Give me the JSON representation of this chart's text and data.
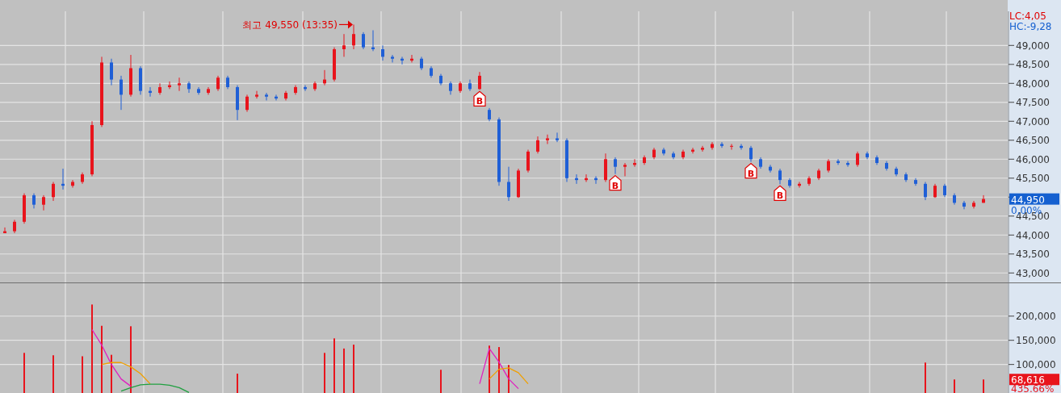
{
  "chart_data": [
    {
      "type": "candlestick",
      "categories": [
        null,
        null,
        null,
        null,
        null,
        null,
        null,
        null,
        null,
        null,
        null,
        null,
        null,
        null,
        null,
        null,
        null,
        null,
        null,
        null,
        null,
        null,
        null,
        null,
        null,
        null,
        null,
        null,
        null,
        null,
        null,
        null,
        null,
        null,
        null,
        null,
        null,
        null,
        null,
        null,
        null,
        null,
        null,
        null,
        null,
        null,
        null,
        null,
        null,
        null,
        null,
        null,
        null,
        null,
        null,
        null,
        null,
        null,
        null,
        null,
        null,
        null,
        null,
        null,
        null,
        null,
        null,
        null,
        null,
        null,
        null,
        null,
        null,
        null,
        null,
        null,
        null,
        null,
        null,
        null,
        null,
        null,
        null,
        null,
        null,
        null,
        null,
        null,
        null,
        null,
        null,
        null,
        null,
        null,
        null,
        null,
        null,
        null,
        null,
        null,
        null,
        null
      ],
      "ohlc": [
        [
          44050,
          44200,
          44050,
          44100
        ],
        [
          44100,
          44400,
          44050,
          44350
        ],
        [
          44350,
          45100,
          44300,
          45050
        ],
        [
          45050,
          45100,
          44700,
          44800
        ],
        [
          44800,
          45050,
          44650,
          45000
        ],
        [
          45000,
          45400,
          44900,
          45350
        ],
        [
          45350,
          45750,
          45200,
          45300
        ],
        [
          45300,
          45450,
          45250,
          45400
        ],
        [
          45400,
          45650,
          45350,
          45600
        ],
        [
          45600,
          47000,
          45550,
          46900
        ],
        [
          46900,
          48700,
          46850,
          48550
        ],
        [
          48550,
          48650,
          47950,
          48100
        ],
        [
          48100,
          48200,
          47300,
          47700
        ],
        [
          47700,
          48750,
          47650,
          48400
        ],
        [
          48400,
          48450,
          47700,
          47800
        ],
        [
          47800,
          47900,
          47650,
          47750
        ],
        [
          47750,
          48000,
          47700,
          47900
        ],
        [
          47900,
          48050,
          47850,
          47950
        ],
        [
          47950,
          48150,
          47800,
          48000
        ],
        [
          48000,
          48050,
          47750,
          47850
        ],
        [
          47850,
          47900,
          47700,
          47750
        ],
        [
          47750,
          47900,
          47700,
          47850
        ],
        [
          47850,
          48200,
          47800,
          48150
        ],
        [
          48150,
          48200,
          47850,
          47900
        ],
        [
          47900,
          47950,
          47030,
          47300
        ],
        [
          47300,
          47700,
          47250,
          47650
        ],
        [
          47650,
          47800,
          47600,
          47700
        ],
        [
          47700,
          47750,
          47550,
          47650
        ],
        [
          47650,
          47700,
          47550,
          47600
        ],
        [
          47600,
          47800,
          47550,
          47750
        ],
        [
          47750,
          47950,
          47700,
          47900
        ],
        [
          47900,
          47950,
          47800,
          47850
        ],
        [
          47850,
          48050,
          47800,
          48000
        ],
        [
          48000,
          48350,
          47950,
          48100
        ],
        [
          48100,
          48950,
          48050,
          48900
        ],
        [
          48900,
          49300,
          48700,
          49000
        ],
        [
          49000,
          49550,
          48900,
          49300
        ],
        [
          49300,
          49350,
          48900,
          48950
        ],
        [
          48950,
          49400,
          48850,
          48900
        ],
        [
          48900,
          49000,
          48600,
          48700
        ],
        [
          48700,
          48750,
          48550,
          48650
        ],
        [
          48650,
          48700,
          48500,
          48600
        ],
        [
          48600,
          48750,
          48550,
          48650
        ],
        [
          48650,
          48700,
          48350,
          48400
        ],
        [
          48400,
          48450,
          48150,
          48200
        ],
        [
          48200,
          48250,
          47950,
          48000
        ],
        [
          48000,
          48050,
          47700,
          47800
        ],
        [
          47800,
          48050,
          47750,
          48000
        ],
        [
          48000,
          48100,
          47800,
          47850
        ],
        [
          47850,
          48300,
          47830,
          48200
        ],
        [
          47300,
          47350,
          47000,
          47050
        ],
        [
          47050,
          47100,
          45300,
          45400
        ],
        [
          45400,
          45800,
          44900,
          45000
        ],
        [
          45000,
          45750,
          44980,
          45700
        ],
        [
          45700,
          46250,
          45650,
          46200
        ],
        [
          46200,
          46600,
          46150,
          46500
        ],
        [
          46500,
          46650,
          46400,
          46550
        ],
        [
          46550,
          46700,
          46450,
          46500
        ],
        [
          46500,
          46550,
          45400,
          45500
        ],
        [
          45500,
          45600,
          45350,
          45450
        ],
        [
          45450,
          45600,
          45400,
          45500
        ],
        [
          45500,
          45550,
          45350,
          45450
        ],
        [
          45450,
          46150,
          45400,
          46000
        ],
        [
          46000,
          46050,
          45610,
          45800
        ],
        [
          45800,
          45900,
          45550,
          45850
        ],
        [
          45850,
          46000,
          45800,
          45900
        ],
        [
          45900,
          46100,
          45850,
          46050
        ],
        [
          46050,
          46300,
          46000,
          46250
        ],
        [
          46250,
          46300,
          46100,
          46150
        ],
        [
          46150,
          46200,
          46000,
          46050
        ],
        [
          46050,
          46250,
          46000,
          46200
        ],
        [
          46200,
          46300,
          46150,
          46250
        ],
        [
          46250,
          46350,
          46200,
          46300
        ],
        [
          46300,
          46450,
          46250,
          46400
        ],
        [
          46400,
          46450,
          46300,
          46350
        ],
        [
          46350,
          46400,
          46250,
          46350
        ],
        [
          46350,
          46400,
          46250,
          46300
        ],
        [
          46300,
          46350,
          45930,
          46000
        ],
        [
          46000,
          46050,
          45750,
          45800
        ],
        [
          45800,
          45850,
          45650,
          45700
        ],
        [
          45700,
          45750,
          45340,
          45450
        ],
        [
          45450,
          45500,
          45250,
          45300
        ],
        [
          45300,
          45400,
          45250,
          45350
        ],
        [
          45350,
          45550,
          45300,
          45500
        ],
        [
          45500,
          45750,
          45450,
          45700
        ],
        [
          45700,
          46000,
          45650,
          45950
        ],
        [
          45950,
          46000,
          45850,
          45900
        ],
        [
          45900,
          45950,
          45800,
          45850
        ],
        [
          45850,
          46200,
          45800,
          46150
        ],
        [
          46150,
          46200,
          46000,
          46050
        ],
        [
          46050,
          46100,
          45850,
          45900
        ],
        [
          45900,
          45950,
          45700,
          45750
        ],
        [
          45750,
          45800,
          45550,
          45600
        ],
        [
          45600,
          45650,
          45400,
          45450
        ],
        [
          45450,
          45500,
          45300,
          45350
        ],
        [
          45350,
          45400,
          44920,
          45000
        ],
        [
          45000,
          45350,
          44980,
          45300
        ],
        [
          45300,
          45350,
          45000,
          45050
        ],
        [
          45050,
          45100,
          44800,
          44850
        ],
        [
          44850,
          44900,
          44680,
          44750
        ],
        [
          44750,
          44900,
          44700,
          44850
        ],
        [
          44850,
          45050,
          44850,
          44950
        ]
      ],
      "ylim": [
        42750,
        49900
      ],
      "yticks": [
        {
          "value": 43000,
          "label": "43,000"
        },
        {
          "value": 43500,
          "label": "43,500"
        },
        {
          "value": 44000,
          "label": "44,000"
        },
        {
          "value": 44500,
          "label": "44,500"
        },
        {
          "value": 45000,
          "label": null
        },
        {
          "value": 45500,
          "label": "45,500"
        },
        {
          "value": 46000,
          "label": "46,000"
        },
        {
          "value": 46500,
          "label": "46,500"
        },
        {
          "value": 47000,
          "label": "47,000"
        },
        {
          "value": 47500,
          "label": "47,500"
        },
        {
          "value": 48000,
          "label": "48,000"
        },
        {
          "value": 48500,
          "label": "48,500"
        },
        {
          "value": 49000,
          "label": "49,000"
        }
      ],
      "grid": true,
      "tick_labels": "y",
      "annotations": [
        "최고 49,550 (13:35)",
        {
          "text": "B",
          "y": 47830
        },
        {
          "text": "B",
          "y": 45610
        },
        {
          "text": "B",
          "y": 45930
        },
        {
          "text": "B",
          "y": 45340
        },
        "LC:4,05",
        "HC:-9,28",
        "44,950",
        "0,00%"
      ]
    },
    {
      "type": "bar",
      "categories": [
        null,
        null,
        null,
        null,
        null,
        null,
        null,
        null,
        null,
        null,
        null,
        null,
        null,
        null,
        null,
        null,
        null,
        null,
        null,
        null,
        null,
        null,
        null,
        null,
        null,
        null,
        null,
        null,
        null,
        null,
        null,
        null,
        null,
        null,
        null,
        null,
        null,
        null,
        null,
        null,
        null,
        null,
        null,
        null,
        null,
        null,
        null,
        null,
        null,
        null,
        null,
        null,
        null,
        null,
        null,
        null,
        null,
        null,
        null,
        null,
        null,
        null,
        null,
        null,
        null,
        null,
        null,
        null,
        null,
        null,
        null,
        null,
        null,
        null,
        null,
        null,
        null,
        null,
        null,
        null,
        null,
        null,
        null,
        null,
        null,
        null,
        null,
        null,
        null,
        null,
        null,
        null,
        null,
        null,
        null,
        null,
        null,
        null,
        null,
        null,
        null,
        null
      ],
      "series": [
        {
          "color": "#e8141c",
          "values": [
            null,
            null,
            124000,
            null,
            null,
            119000,
            null,
            null,
            117000,
            224000,
            180000,
            120000,
            null,
            179000,
            null,
            null,
            null,
            null,
            null,
            null,
            null,
            null,
            null,
            null,
            81000,
            null,
            null,
            null,
            null,
            null,
            null,
            null,
            null,
            124000,
            154000,
            133000,
            141000,
            null,
            null,
            null,
            null,
            null,
            null,
            null,
            null,
            89000,
            null,
            null,
            null,
            null,
            139000,
            136000,
            99000,
            null,
            null,
            null,
            null,
            null,
            null,
            null,
            null,
            null,
            null,
            null,
            null,
            null,
            null,
            null,
            null,
            null,
            null,
            null,
            null,
            null,
            null,
            null,
            null,
            null,
            null,
            null,
            null,
            null,
            null,
            null,
            null,
            null,
            null,
            null,
            null,
            null,
            null,
            null,
            null,
            null,
            null,
            104000,
            null,
            null,
            69000,
            null,
            null,
            69000
          ]
        },
        {
          "type": "line",
          "color": "#e020c0",
          "values": [
            null,
            null,
            null,
            null,
            null,
            null,
            null,
            null,
            null,
            172000,
            140000,
            100000,
            70000,
            55000,
            null,
            null,
            null,
            null,
            null,
            null,
            null,
            null,
            null,
            null,
            null,
            null,
            null,
            null,
            null,
            null,
            null,
            null,
            null,
            null,
            null,
            null,
            null,
            null,
            null,
            null,
            null,
            null,
            null,
            null,
            null,
            null,
            null,
            null,
            null,
            60000,
            133000,
            105000,
            70000,
            50000,
            null,
            null,
            null,
            null,
            null,
            null,
            null,
            null,
            null,
            null,
            null,
            null,
            null,
            null,
            null,
            null,
            null,
            null,
            null,
            null,
            null,
            null,
            null,
            null,
            null,
            null,
            null,
            null,
            null,
            null,
            null,
            null,
            null,
            null,
            null,
            null,
            null,
            null,
            null,
            null,
            null,
            null,
            null,
            null,
            null,
            null,
            null,
            null
          ]
        },
        {
          "type": "line",
          "color": "#f0a000",
          "values": [
            null,
            null,
            null,
            null,
            null,
            null,
            null,
            null,
            null,
            null,
            100000,
            104000,
            104000,
            95000,
            81000,
            60000,
            null,
            null,
            null,
            null,
            null,
            null,
            null,
            null,
            null,
            null,
            null,
            null,
            null,
            null,
            null,
            null,
            null,
            null,
            null,
            null,
            null,
            null,
            null,
            null,
            null,
            null,
            null,
            null,
            null,
            null,
            null,
            null,
            null,
            null,
            70000,
            90000,
            93000,
            83000,
            60000,
            null,
            null,
            null,
            null,
            null,
            null,
            null,
            null,
            null,
            null,
            null,
            null,
            null,
            null,
            null,
            null,
            null,
            null,
            null,
            null,
            null,
            null,
            null,
            null,
            null,
            null,
            null,
            null,
            null,
            null,
            null,
            null,
            null,
            null,
            null,
            null,
            null,
            null,
            null,
            null,
            null,
            null,
            null,
            null,
            null,
            null,
            null
          ]
        },
        {
          "type": "line",
          "color": "#20a040",
          "values": [
            null,
            null,
            null,
            null,
            null,
            null,
            null,
            null,
            null,
            null,
            null,
            null,
            45000,
            52000,
            58000,
            59000,
            59000,
            57000,
            52000,
            42000,
            null,
            null,
            null,
            null,
            null,
            null,
            null,
            null,
            null,
            null,
            null,
            null,
            null,
            null,
            null,
            null,
            null,
            null,
            null,
            null,
            null,
            null,
            null,
            null,
            null,
            null,
            null,
            null,
            null,
            null,
            null,
            null,
            null,
            null,
            null,
            null,
            null,
            null,
            null,
            null,
            null,
            null,
            null,
            null,
            null,
            null,
            null,
            null,
            null,
            null,
            null,
            null,
            null,
            null,
            null,
            null,
            null,
            null,
            null,
            null,
            null,
            null,
            null,
            null,
            null,
            null,
            null,
            null,
            null,
            null,
            null,
            null,
            null,
            null,
            null,
            null,
            null,
            null,
            null,
            null,
            null,
            null
          ]
        }
      ],
      "ylim": [
        41000,
        268000
      ],
      "yticks": [
        {
          "value": 100000,
          "label": "100,000"
        },
        {
          "value": 150000,
          "label": "150,000"
        },
        {
          "value": 200000,
          "label": "200,000"
        }
      ],
      "grid": true,
      "tick_labels": "y",
      "annotations": [
        "68,616",
        "435.66%"
      ]
    }
  ]
}
